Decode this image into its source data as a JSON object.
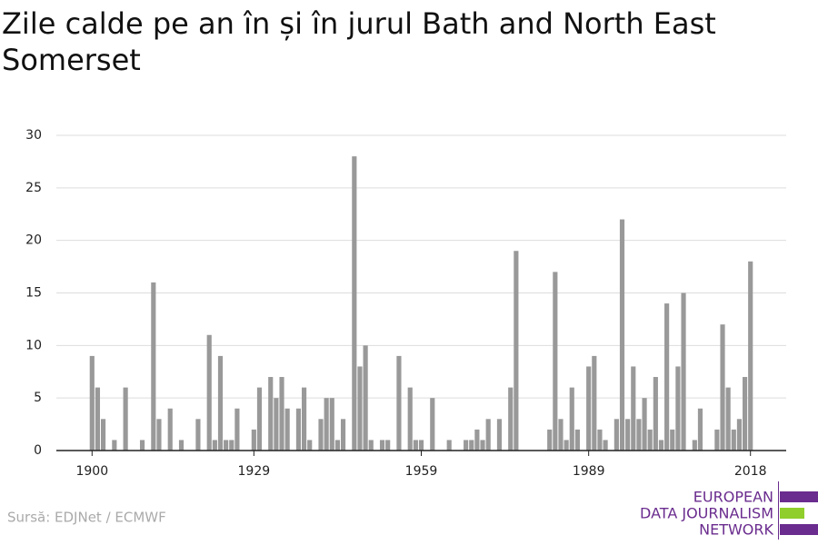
{
  "chart_data": {
    "type": "bar",
    "title": "Zile calde pe an în și în jurul Bath and North East Somerset",
    "source": "Sursă: EDJNet / ECMWF",
    "logo": [
      "EUROPEAN",
      "DATA JOURNALISM",
      "NETWORK"
    ],
    "color": "#999999",
    "grid": true,
    "x": [
      1900,
      1901,
      1902,
      1903,
      1904,
      1905,
      1906,
      1907,
      1908,
      1909,
      1910,
      1911,
      1912,
      1913,
      1914,
      1915,
      1916,
      1917,
      1918,
      1919,
      1920,
      1921,
      1922,
      1923,
      1924,
      1925,
      1926,
      1927,
      1928,
      1929,
      1930,
      1931,
      1932,
      1933,
      1934,
      1935,
      1936,
      1937,
      1938,
      1939,
      1940,
      1941,
      1942,
      1943,
      1944,
      1945,
      1946,
      1947,
      1948,
      1949,
      1950,
      1951,
      1952,
      1953,
      1954,
      1955,
      1956,
      1957,
      1958,
      1959,
      1960,
      1961,
      1962,
      1963,
      1964,
      1965,
      1966,
      1967,
      1968,
      1969,
      1970,
      1971,
      1972,
      1973,
      1974,
      1975,
      1976,
      1977,
      1978,
      1979,
      1980,
      1981,
      1982,
      1983,
      1984,
      1985,
      1986,
      1987,
      1988,
      1989,
      1990,
      1991,
      1992,
      1993,
      1994,
      1995,
      1996,
      1997,
      1998,
      1999,
      2000,
      2001,
      2002,
      2003,
      2004,
      2005,
      2006,
      2007,
      2008,
      2009,
      2010,
      2011,
      2012,
      2013,
      2014,
      2015,
      2016,
      2017,
      2018
    ],
    "values": [
      9,
      6,
      3,
      0,
      1,
      0,
      6,
      0,
      0,
      1,
      0,
      16,
      3,
      0,
      4,
      0,
      1,
      0,
      0,
      3,
      0,
      11,
      1,
      9,
      1,
      1,
      4,
      0,
      0,
      2,
      6,
      0,
      7,
      5,
      7,
      4,
      0,
      4,
      6,
      1,
      0,
      3,
      5,
      5,
      1,
      3,
      0,
      28,
      8,
      10,
      1,
      0,
      1,
      1,
      0,
      9,
      0,
      6,
      1,
      1,
      0,
      5,
      0,
      0,
      1,
      0,
      0,
      1,
      1,
      2,
      1,
      3,
      0,
      3,
      0,
      6,
      19,
      0,
      0,
      0,
      0,
      0,
      2,
      17,
      3,
      1,
      6,
      2,
      0,
      8,
      9,
      2,
      1,
      0,
      3,
      22,
      3,
      8,
      3,
      5,
      2,
      7,
      1,
      14,
      2,
      8,
      15,
      0,
      1,
      4,
      0,
      0,
      2,
      12,
      6,
      2,
      3,
      7,
      18
    ],
    "xlim": [
      1893.6,
      2024.4
    ],
    "xticks": [
      1900,
      1929,
      1959,
      1989,
      2018
    ],
    "ylim": [
      0,
      30
    ],
    "yticks": [
      0,
      5,
      10,
      15,
      20,
      25,
      30
    ]
  }
}
